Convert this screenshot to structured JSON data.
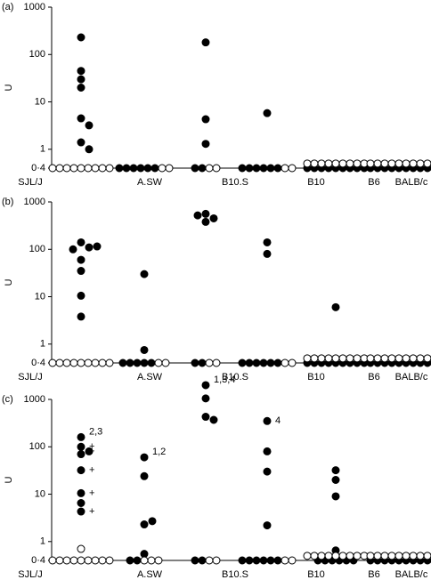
{
  "chart_data": [
    {
      "type": "scatter",
      "label": "(a)",
      "y_label": "U",
      "log_scale": true,
      "categories": [
        "SJL/J",
        "A.SW",
        "B10.S",
        "B10",
        "B6",
        "BALB/c"
      ],
      "ylim": [
        0.4,
        1000
      ],
      "yticks": [
        {
          "value": 0.4,
          "label": "0·4"
        },
        1,
        10,
        100,
        1000
      ],
      "series": [
        {
          "color": "#000000",
          "values": [
            [
              230,
              45,
              30,
              20,
              4.5,
              3.2,
              1.4,
              1.0
            ],
            [
              0.4,
              0.4,
              0.4,
              0.4,
              0.4,
              0.4
            ],
            [
              180,
              4.3,
              1.3,
              0.4,
              0.4
            ],
            [
              5.8,
              0.4,
              0.4,
              0.4,
              0.4,
              0.4,
              0.4
            ],
            [
              0.4,
              0.4,
              0.4,
              0.4,
              0.4,
              0.4,
              0.4,
              0.4,
              0.4
            ],
            [
              0.4,
              0.4,
              0.4,
              0.4,
              0.4,
              0.4,
              0.4,
              0.4,
              0.4
            ]
          ]
        },
        {
          "color": "#ffffff",
          "values": [
            [
              0.4,
              0.4,
              0.4,
              0.4,
              0.4,
              0.4,
              0.4,
              0.4,
              0.4
            ],
            [
              0.4,
              0.4
            ],
            [
              0.4,
              0.4
            ],
            [
              0.4,
              0.4
            ],
            [
              0.5,
              0.5,
              0.5,
              0.5,
              0.5,
              0.5,
              0.5,
              0.5,
              0.5
            ],
            [
              0.5,
              0.5,
              0.5,
              0.5,
              0.5,
              0.5,
              0.5,
              0.5,
              0.5
            ]
          ]
        }
      ]
    },
    {
      "type": "scatter",
      "label": "(b)",
      "y_label": "U",
      "log_scale": true,
      "categories": [
        "SJL/J",
        "A.SW",
        "B10.S",
        "B10",
        "B6",
        "BALB/c"
      ],
      "ylim": [
        0.4,
        1000
      ],
      "yticks": [
        {
          "value": 0.4,
          "label": "0·4"
        },
        1,
        10,
        100,
        1000
      ],
      "series": [
        {
          "color": "#000000",
          "values": [
            [
              140,
              110,
              100,
              115,
              60,
              35,
              10.5,
              3.8
            ],
            [
              30,
              0.75,
              0.4,
              0.4,
              0.4,
              0.4,
              0.4
            ],
            [
              560,
              450,
              520,
              380,
              0.4,
              0.4
            ],
            [
              140,
              80,
              0.4,
              0.4,
              0.4,
              0.4,
              0.4,
              0.4
            ],
            [
              6,
              0.4,
              0.4,
              0.4,
              0.4,
              0.4,
              0.4,
              0.4,
              0.4,
              0.4
            ],
            [
              0.4,
              0.4,
              0.4,
              0.4,
              0.4,
              0.4,
              0.4,
              0.4,
              0.4
            ]
          ]
        },
        {
          "color": "#ffffff",
          "values": [
            [
              0.4,
              0.4,
              0.4,
              0.4,
              0.4,
              0.4,
              0.4,
              0.4,
              0.4
            ],
            [
              0.4,
              0.4
            ],
            [
              0.4,
              0.4
            ],
            [
              0.4,
              0.4
            ],
            [
              0.5,
              0.5,
              0.5,
              0.5,
              0.5,
              0.5,
              0.5,
              0.5,
              0.5
            ],
            [
              0.5,
              0.5,
              0.5,
              0.5,
              0.5,
              0.5,
              0.5,
              0.5,
              0.5
            ]
          ]
        }
      ]
    },
    {
      "type": "scatter",
      "label": "(c)",
      "y_label": "U",
      "log_scale": true,
      "categories": [
        "SJL/J",
        "A.SW",
        "B10.S",
        "B10",
        "B6",
        "BALB/c"
      ],
      "ylim": [
        0.4,
        1000
      ],
      "yticks": [
        {
          "value": 0.4,
          "label": "0·4"
        },
        1,
        10,
        100,
        1000
      ],
      "series": [
        {
          "color": "#000000",
          "values": [
            [
              160,
              100,
              70,
              80,
              32,
              10.5,
              6.5,
              4.3
            ],
            [
              60,
              24,
              2.3,
              2.7,
              0.55,
              0.4,
              0.4
            ],
            [
              2000,
              1050,
              430,
              370,
              0.4,
              0.4
            ],
            [
              350,
              80,
              30,
              2.2,
              0.4,
              0.4,
              0.4,
              0.4,
              0.4,
              0.4
            ],
            [
              32,
              20,
              9,
              0.65,
              0.4,
              0.4,
              0.4,
              0.4,
              0.4,
              0.4
            ],
            [
              0.4,
              0.4,
              0.4,
              0.4,
              0.4,
              0.4,
              0.4,
              0.4,
              0.4
            ]
          ]
        },
        {
          "color": "#ffffff",
          "values": [
            [
              0.7,
              0.4,
              0.4,
              0.4,
              0.4,
              0.4,
              0.4,
              0.4,
              0.4,
              0.4
            ],
            [
              0.4,
              0.4,
              0.4
            ],
            [
              0.4,
              0.4
            ],
            [
              0.4,
              0.4
            ],
            [
              0.5,
              0.5,
              0.5,
              0.5,
              0.5,
              0.5,
              0.5,
              0.5,
              0.5
            ],
            [
              0.5,
              0.5,
              0.5,
              0.5,
              0.5,
              0.5,
              0.5,
              0.5,
              0.5
            ]
          ]
        }
      ],
      "annotations": [
        {
          "text": "2,3",
          "category": "SJL/J",
          "y": 160
        },
        {
          "text": "+",
          "category": "SJL/J",
          "y": 100
        },
        {
          "text": "+",
          "category": "SJL/J",
          "y": 80
        },
        {
          "text": "+",
          "category": "SJL/J",
          "y": 32
        },
        {
          "text": "+",
          "category": "SJL/J",
          "y": 10.5
        },
        {
          "text": "+",
          "category": "SJL/J",
          "y": 4.3
        },
        {
          "text": "1,2",
          "category": "A.SW",
          "y": 60
        },
        {
          "text": "1,3,4",
          "category": "B10.S",
          "y": 2000
        },
        {
          "text": "4",
          "category": "B10",
          "y": 350
        }
      ]
    }
  ]
}
